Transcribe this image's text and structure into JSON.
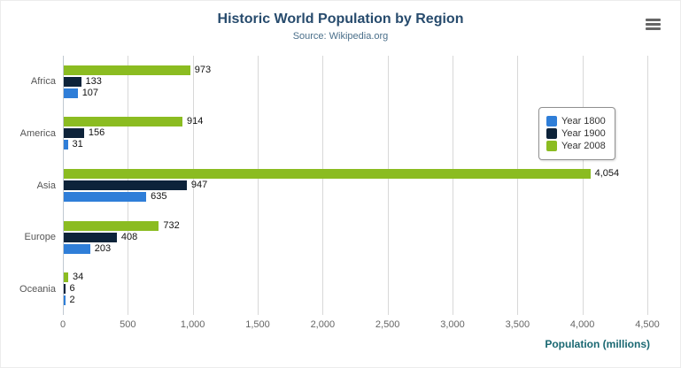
{
  "chart_data": {
    "type": "bar",
    "orientation": "horizontal",
    "title": "Historic World Population by Region",
    "subtitle": "Source: Wikipedia.org",
    "categories": [
      "Africa",
      "America",
      "Asia",
      "Europe",
      "Oceania"
    ],
    "series": [
      {
        "name": "Year 1800",
        "color": "#2f7ed8",
        "values": [
          107,
          31,
          635,
          203,
          2
        ]
      },
      {
        "name": "Year 1900",
        "color": "#0d233a",
        "values": [
          133,
          156,
          947,
          408,
          6
        ]
      },
      {
        "name": "Year 2008",
        "color": "#8bbc21",
        "values": [
          973,
          914,
          4054,
          732,
          34
        ]
      }
    ],
    "xlabel": "Population (millions)",
    "xlim": [
      0,
      4500
    ],
    "xticks": [
      0,
      500,
      1000,
      1500,
      2000,
      2500,
      3000,
      3500,
      4000,
      4500
    ],
    "grid": true,
    "legend_position": "right",
    "data_labels": true
  },
  "menu": {
    "tooltip": "Chart context menu"
  }
}
